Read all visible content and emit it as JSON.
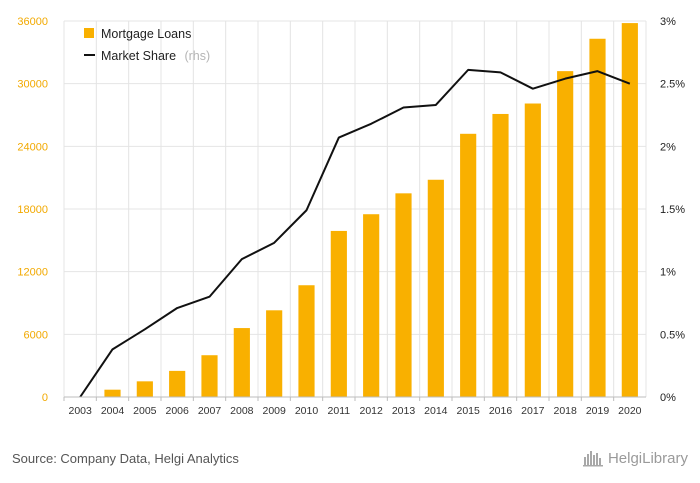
{
  "chart_data": {
    "type": "bar+line",
    "categories": [
      "2003",
      "2004",
      "2005",
      "2006",
      "2007",
      "2008",
      "2009",
      "2010",
      "2011",
      "2012",
      "2013",
      "2014",
      "2015",
      "2016",
      "2017",
      "2018",
      "2019",
      "2020"
    ],
    "series": [
      {
        "name": "Mortgage Loans",
        "type": "bar",
        "axis": "left",
        "color": "#f9b000",
        "values": [
          0,
          700,
          1500,
          2500,
          4000,
          6600,
          8300,
          10700,
          15900,
          17500,
          19500,
          20800,
          25200,
          27100,
          28100,
          31200,
          34300,
          35800
        ]
      },
      {
        "name": "Market Share",
        "type": "line",
        "axis": "right",
        "color": "#111111",
        "values": [
          0.0,
          0.38,
          0.54,
          0.71,
          0.8,
          1.1,
          1.23,
          1.49,
          2.07,
          2.18,
          2.31,
          2.33,
          2.61,
          2.59,
          2.46,
          2.54,
          2.6,
          2.5
        ]
      }
    ],
    "y_left": {
      "ticks": [
        "0",
        "6000",
        "12000",
        "18000",
        "24000",
        "30000",
        "36000"
      ],
      "lim": [
        0,
        36000
      ]
    },
    "y_right": {
      "ticks": [
        "0%",
        "0.5%",
        "1%",
        "1.5%",
        "2%",
        "2.5%",
        "3%"
      ],
      "lim": [
        0,
        3
      ]
    },
    "legend": {
      "position": "top-left",
      "items": [
        {
          "label": "Mortgage Loans",
          "suffix": ""
        },
        {
          "label": "Market Share",
          "suffix": "(rhs)"
        }
      ]
    },
    "grid": true
  },
  "footer": {
    "source": "Source: Company Data, Helgi Analytics",
    "brand": "HelgiLibrary",
    "brand_icon": "helgi-logo-icon"
  },
  "colors": {
    "bar": "#f9b000",
    "line": "#111111",
    "grid": "#e4e4e4"
  }
}
